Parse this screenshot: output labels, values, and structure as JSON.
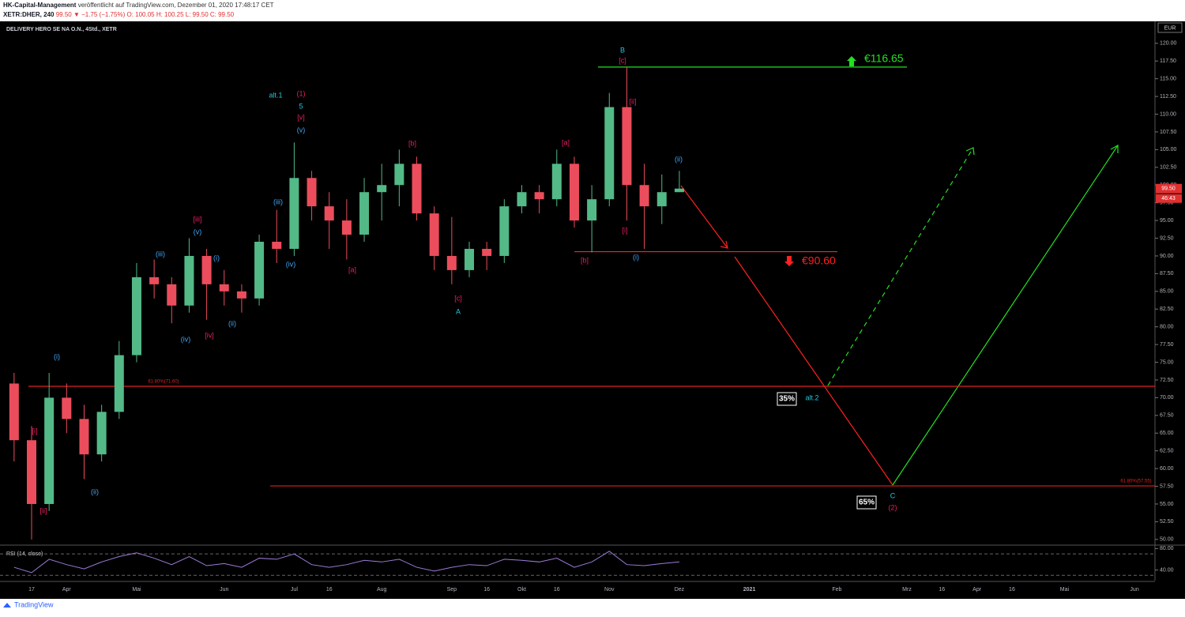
{
  "header": {
    "author": "HK-Capital-Management",
    "published": "veröffentlicht auf TradingView.com, Dezember 01, 2020 17:48:17 CET",
    "symbol": "XETR:DHER, 240",
    "change": "99.50 ▼ −1.75 (−1.75%)",
    "ohlc": "O: 100.05 H: 100.25 L: 99.50 C: 99.50"
  },
  "footer": {
    "brand": "TradingView"
  },
  "chart_data": {
    "type": "candlestick",
    "title": "DELIVERY HERO SE NA O.N., 4Std., XETR",
    "currency": "EUR",
    "up_color": "#53b987",
    "down_color": "#eb4d5c",
    "categories": [
      null,
      "17",
      null,
      "Apr",
      null,
      null,
      null,
      "Mai",
      null,
      null,
      null,
      null,
      "Jun",
      null,
      null,
      null,
      "Jul",
      null,
      "16",
      null,
      null,
      "Aug",
      null,
      null,
      null,
      "Sep",
      null,
      "16",
      null,
      "Okt",
      null,
      "16",
      null,
      null,
      "Nov",
      null,
      null,
      null,
      "Dez",
      null,
      null,
      null,
      "2021",
      null,
      null,
      null,
      null,
      "Feb",
      null,
      null,
      null,
      "Mrz",
      null,
      "16",
      null,
      "Apr",
      null,
      "16",
      null,
      null,
      "Mai",
      null,
      null,
      null,
      "Jun",
      null
    ],
    "open": [
      72,
      64,
      55,
      70,
      67,
      62,
      68,
      76,
      87,
      86,
      83,
      90,
      86,
      85,
      84,
      92,
      91,
      101,
      97,
      95,
      93,
      99,
      100,
      103,
      96,
      90,
      88,
      91,
      90,
      97,
      99,
      98,
      103,
      95,
      98,
      111,
      100,
      97,
      99,
      null,
      null,
      null,
      null,
      null,
      null,
      null,
      null,
      null,
      null,
      null,
      null,
      null,
      null,
      null,
      null,
      null,
      null,
      null,
      null,
      null,
      null,
      null,
      null,
      null,
      null,
      null
    ],
    "high": [
      73.5,
      66,
      73.5,
      72,
      69,
      69,
      78,
      89,
      89.5,
      87,
      92.5,
      91,
      88,
      86,
      93,
      96.5,
      106,
      102,
      99,
      98,
      101,
      103,
      105,
      104,
      97,
      95.5,
      92,
      92,
      98,
      100,
      100,
      105,
      104,
      100,
      113,
      116.65,
      103,
      101.5,
      102,
      null,
      null,
      null,
      null,
      null,
      null,
      null,
      null,
      null,
      null,
      null,
      null,
      null,
      null,
      null,
      null,
      null,
      null,
      null,
      null,
      null,
      null,
      null,
      null,
      null,
      null,
      null
    ],
    "low": [
      61,
      50,
      54,
      65,
      58.5,
      61,
      67,
      75,
      84,
      80.5,
      82,
      81,
      83,
      82,
      83,
      89,
      90,
      95,
      91,
      89.5,
      92,
      95,
      97,
      95,
      88,
      86,
      87,
      88,
      89,
      96,
      96,
      97,
      94,
      90.5,
      97,
      95,
      91,
      94.5,
      99,
      null,
      null,
      null,
      null,
      null,
      null,
      null,
      null,
      null,
      null,
      null,
      null,
      null,
      null,
      null,
      null,
      null,
      null,
      null,
      null,
      null,
      null,
      null,
      null,
      null,
      null,
      null
    ],
    "close": [
      64,
      55,
      70,
      67,
      62,
      68,
      76,
      87,
      86,
      83,
      90,
      86,
      85,
      84,
      92,
      91,
      101,
      97,
      95,
      93,
      99,
      100,
      103,
      96,
      90,
      88,
      91,
      90,
      97,
      99,
      98,
      103,
      95,
      98,
      111,
      100,
      97,
      99,
      99.5,
      null,
      null,
      null,
      null,
      null,
      null,
      null,
      null,
      null,
      null,
      null,
      null,
      null,
      null,
      null,
      null,
      null,
      null,
      null,
      null,
      null,
      null,
      null,
      null,
      null,
      null,
      null
    ],
    "ylim": [
      49.2,
      123.1
    ],
    "yticks": [
      {
        "value": 50,
        "label": "50.00"
      },
      {
        "value": 52.5,
        "label": "52.50"
      },
      {
        "value": 55,
        "label": "55.00"
      },
      {
        "value": 57.5,
        "label": "57.50"
      },
      {
        "value": 60,
        "label": "60.00"
      },
      {
        "value": 62.5,
        "label": "62.50"
      },
      {
        "value": 65,
        "label": "65.00"
      },
      {
        "value": 67.5,
        "label": "67.50"
      },
      {
        "value": 70,
        "label": "70.00"
      },
      {
        "value": 72.5,
        "label": "72.50"
      },
      {
        "value": 75,
        "label": "75.00"
      },
      {
        "value": 77.5,
        "label": "77.50"
      },
      {
        "value": 80,
        "label": "80.00"
      },
      {
        "value": 82.5,
        "label": "82.50"
      },
      {
        "value": 85,
        "label": "85.00"
      },
      {
        "value": 87.5,
        "label": "87.50"
      },
      {
        "value": 90,
        "label": "90.00"
      },
      {
        "value": 92.5,
        "label": "92.50"
      },
      {
        "value": 95,
        "label": "95.00"
      },
      {
        "value": 97.5,
        "label": "97.50"
      },
      {
        "value": 100,
        "label": "100.00"
      },
      {
        "value": 102.5,
        "label": "102.50"
      },
      {
        "value": 105,
        "label": "105.00"
      },
      {
        "value": 107.5,
        "label": "107.50"
      },
      {
        "value": 110,
        "label": "110.00"
      },
      {
        "value": 112.5,
        "label": "112.50"
      },
      {
        "value": 115,
        "label": "115.00"
      },
      {
        "value": 117.5,
        "label": "117.50"
      },
      {
        "value": 120,
        "label": "120.00"
      }
    ],
    "last_price": {
      "value": 99.5,
      "label": "99.50"
    },
    "countdown": "46:43",
    "levels": [
      {
        "value": 116.65,
        "label": "€116.65",
        "color": "#22e022"
      },
      {
        "value": 90.6,
        "label": "€90.60",
        "color": "#ff2020"
      },
      {
        "value": 71.6,
        "label": "61.80%(71.60)",
        "color": "#e02020"
      },
      {
        "value": 57.55,
        "label": "61.80%(57.55)",
        "color": "#e02020"
      }
    ],
    "probability_labels": [
      "35%",
      "65%"
    ],
    "annotations": [
      {
        "text": "B",
        "color": "#26c6da"
      },
      {
        "text": "[c]",
        "color": "#e91e63"
      },
      {
        "text": "(1)",
        "color": "#e91e63"
      },
      {
        "text": "alt.1",
        "color": "#26c6da"
      },
      {
        "text": "5",
        "color": "#26c6da"
      },
      {
        "text": "[v]",
        "color": "#e91e63"
      },
      {
        "text": "(v)",
        "color": "#42a5f5"
      },
      {
        "text": "[b]",
        "color": "#e91e63"
      },
      {
        "text": "[a]",
        "color": "#e91e63"
      },
      {
        "text": "[ii]",
        "color": "#e91e63"
      },
      {
        "text": "(ii)",
        "color": "#42a5f5"
      },
      {
        "text": "(iii)",
        "color": "#42a5f5"
      },
      {
        "text": "[iii]",
        "color": "#e91e63"
      },
      {
        "text": "(v)",
        "color": "#42a5f5"
      },
      {
        "text": "(iii)",
        "color": "#42a5f5"
      },
      {
        "text": "(i)",
        "color": "#42a5f5"
      },
      {
        "text": "(iv)",
        "color": "#42a5f5"
      },
      {
        "text": "[a]",
        "color": "#e91e63"
      },
      {
        "text": "[b]",
        "color": "#e91e63"
      },
      {
        "text": "(i)",
        "color": "#42a5f5"
      },
      {
        "text": "[i]",
        "color": "#e91e63"
      },
      {
        "text": "[c]",
        "color": "#e91e63"
      },
      {
        "text": "A",
        "color": "#26c6da"
      },
      {
        "text": "(ii)",
        "color": "#42a5f5"
      },
      {
        "text": "(iv)",
        "color": "#42a5f5"
      },
      {
        "text": "[iv]",
        "color": "#e91e63"
      },
      {
        "text": "(i)",
        "color": "#42a5f5"
      },
      {
        "text": "[i]",
        "color": "#e91e63"
      },
      {
        "text": "(ii)",
        "color": "#42a5f5"
      },
      {
        "text": "[ii]",
        "color": "#e91e63"
      },
      {
        "text": "alt.2",
        "color": "#26c6da"
      },
      {
        "text": "C",
        "color": "#26c6da"
      },
      {
        "text": "(2)",
        "color": "#e91e63"
      }
    ],
    "rsi": {
      "label": "RSI (14, close)",
      "color": "#9c7bd6",
      "ylim": [
        20,
        85
      ],
      "yticks": [
        {
          "value": 80,
          "label": "80.00"
        },
        {
          "value": 40,
          "label": "40.00"
        }
      ],
      "bands": [
        70,
        30
      ],
      "values": [
        45,
        35,
        60,
        50,
        42,
        55,
        65,
        72,
        62,
        50,
        65,
        48,
        52,
        45,
        62,
        60,
        70,
        50,
        45,
        50,
        58,
        55,
        60,
        45,
        38,
        45,
        50,
        48,
        60,
        58,
        55,
        62,
        45,
        55,
        75,
        50,
        48,
        52,
        55,
        null,
        null,
        null,
        null,
        null,
        null,
        null,
        null,
        null,
        null,
        null,
        null,
        null,
        null,
        null,
        null,
        null,
        null,
        null,
        null,
        null,
        null,
        null,
        null,
        null,
        null,
        null
      ]
    }
  }
}
